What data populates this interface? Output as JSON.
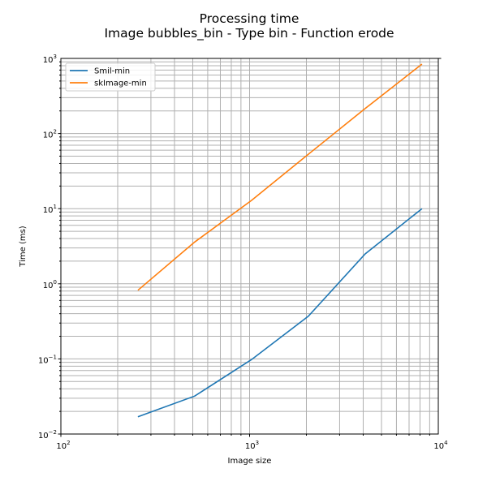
{
  "chart_data": {
    "type": "line",
    "title": "Processing time",
    "subtitle": "Image bubbles_bin - Type bin - Function erode",
    "xlabel": "Image size",
    "ylabel": "Time (ms)",
    "xscale": "log",
    "yscale": "log",
    "xlim": [
      100,
      10000
    ],
    "ylim": [
      0.01,
      1000
    ],
    "x_ticks": [
      {
        "base": "10",
        "exp": "2",
        "value": 100
      },
      {
        "base": "10",
        "exp": "3",
        "value": 1000
      },
      {
        "base": "10",
        "exp": "4",
        "value": 10000
      }
    ],
    "y_ticks": [
      {
        "base": "10",
        "exp": "−2",
        "value": 0.01
      },
      {
        "base": "10",
        "exp": "−1",
        "value": 0.1
      },
      {
        "base": "10",
        "exp": "0",
        "value": 1
      },
      {
        "base": "10",
        "exp": "1",
        "value": 10
      },
      {
        "base": "10",
        "exp": "2",
        "value": 100
      },
      {
        "base": "10",
        "exp": "3",
        "value": 1000
      }
    ],
    "grid": true,
    "legend_position": "top-left",
    "x": [
      256,
      512,
      1024,
      2048,
      4096,
      8192
    ],
    "series": [
      {
        "name": "Smil-min",
        "color": "#1f77b4",
        "values": [
          0.017,
          0.032,
          0.098,
          0.37,
          2.5,
          10.0
        ]
      },
      {
        "name": "skImage-min",
        "color": "#ff7f0e",
        "values": [
          0.82,
          3.6,
          12.9,
          53,
          215,
          840
        ]
      }
    ]
  }
}
